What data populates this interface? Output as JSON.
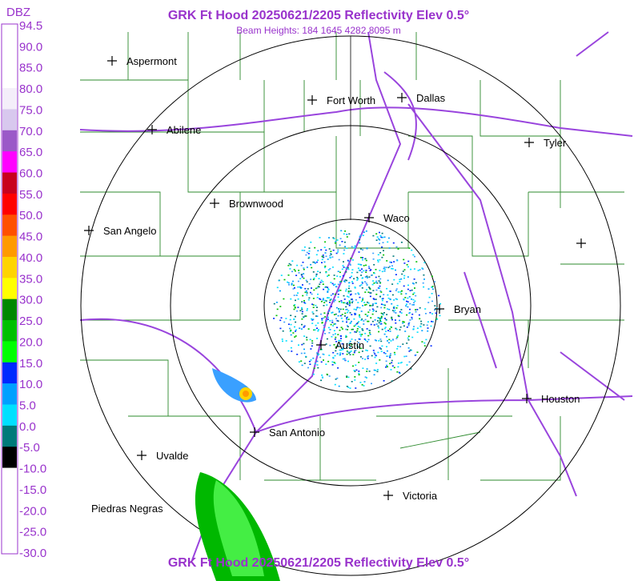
{
  "header": {
    "title": "GRK Ft Hood 20250621/2205 Reflectivity Elev 0.5°",
    "subtitle": "Beam Heights: 184 1645 4282 8095 m"
  },
  "footer": {
    "title": "GRK Ft Hood 20250621/2205 Reflectivity Elev 0.5°"
  },
  "legend": {
    "title": "DBZ",
    "labels": [
      "94.5",
      "90.0",
      "85.0",
      "80.0",
      "75.0",
      "70.0",
      "65.0",
      "60.0",
      "55.0",
      "50.0",
      "45.0",
      "40.0",
      "35.0",
      "30.0",
      "25.0",
      "20.0",
      "15.0",
      "10.0",
      "5.0",
      "0.0",
      "-5.0",
      "-10.0",
      "-15.0",
      "-20.0",
      "-25.0",
      "-30.0"
    ],
    "colors": [
      "#ffffff",
      "#ffffff",
      "#ffffff",
      "#f4eefa",
      "#d8c8ee",
      "#9b59c8",
      "#ff00ff",
      "#c8001e",
      "#ff0000",
      "#ff5000",
      "#ff9a00",
      "#ffd400",
      "#ffff00",
      "#008800",
      "#00c000",
      "#00ff00",
      "#0028ff",
      "#00a0ff",
      "#00e0ff",
      "#007a7a",
      "#000000",
      "#ffffff",
      "#ffffff",
      "#ffffff",
      "#ffffff"
    ]
  },
  "cities": [
    "Aspermont",
    "Fort Worth",
    "Dallas",
    "Abilene",
    "Tyler",
    "Brownwood",
    "Waco",
    "San Angelo",
    "Bryan",
    "Austin",
    "Houston",
    "San Antonio",
    "Uvalde",
    "Victoria",
    "Piedras Negras"
  ]
}
